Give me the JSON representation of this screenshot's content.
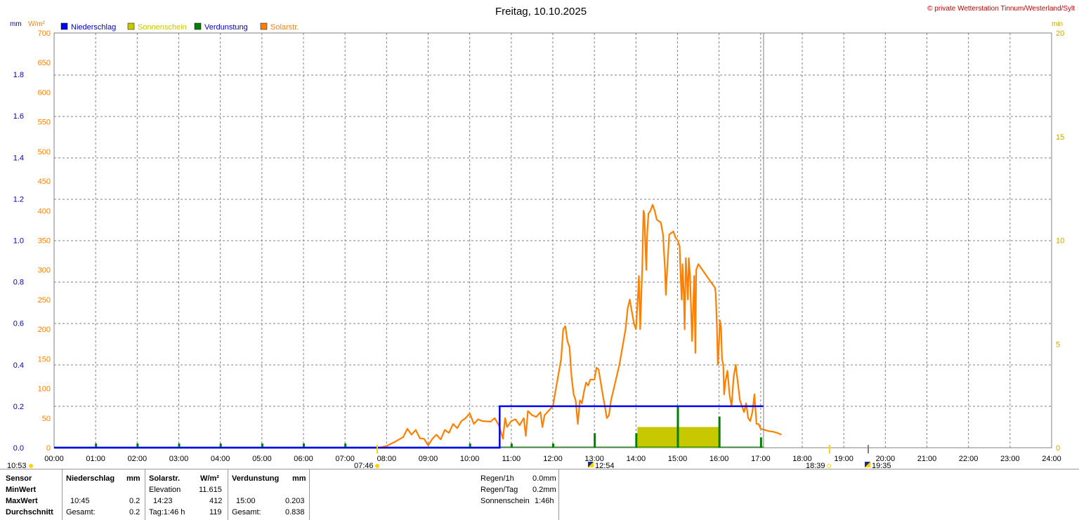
{
  "title": "Freitag, 10.10.2025",
  "copyright": "© private Wetterstation Tinnum/Westerland/Sylt",
  "units": {
    "mm": "mm",
    "wm2": "W/m²",
    "min": "min"
  },
  "legend": [
    {
      "label": "Niederschlag",
      "color": "#0000ff",
      "text_color": "#0000c0"
    },
    {
      "label": "Sonnenschein",
      "color": "#c8c800",
      "text_color": "#c8c800"
    },
    {
      "label": "Verdunstung",
      "color": "#008000",
      "text_color": "#0000c0"
    },
    {
      "label": "Solarstr.",
      "color": "#ff8000",
      "text_color": "#ff8000"
    }
  ],
  "sun_markers": {
    "moonset": "10:53",
    "sunrise": "07:46",
    "moon_mid": "12:54",
    "sunset": "18:39",
    "moonrise": "19:35"
  },
  "chart_data": {
    "type": "line",
    "title": "Freitag, 10.10.2025",
    "x_ticks": [
      "00:00",
      "01:00",
      "02:00",
      "03:00",
      "04:00",
      "05:00",
      "06:00",
      "07:00",
      "08:00",
      "09:00",
      "10:00",
      "11:00",
      "12:00",
      "13:00",
      "14:00",
      "15:00",
      "16:00",
      "17:00",
      "18:00",
      "19:00",
      "20:00",
      "21:00",
      "22:00",
      "23:00",
      "24:00"
    ],
    "xlim_hours": [
      0,
      24
    ],
    "current_time_hours": 17.07,
    "grid": true,
    "legend_position": "top-left",
    "axes": {
      "left_mm": {
        "ticks": [
          "0.0",
          "0.2",
          "0.4",
          "0.6",
          "0.8",
          "1.0",
          "1.2",
          "1.4",
          "1.6",
          "1.8"
        ],
        "range": [
          0,
          2.0
        ]
      },
      "left_wm2": {
        "ticks": [
          "0",
          "50",
          "100",
          "150",
          "200",
          "250",
          "300",
          "350",
          "400",
          "450",
          "500",
          "550",
          "600",
          "650",
          "700"
        ],
        "range": [
          0,
          700
        ]
      },
      "right_min": {
        "ticks": [
          "0",
          "5",
          "10",
          "15",
          "20"
        ],
        "range": [
          0,
          20
        ]
      }
    },
    "series": [
      {
        "name": "Niederschlag",
        "axis": "left_mm",
        "color": "#0000ff",
        "points": [
          [
            0,
            0
          ],
          [
            10.72,
            0
          ],
          [
            10.72,
            0.2
          ],
          [
            17.07,
            0.2
          ]
        ]
      },
      {
        "name": "Solarstr.",
        "axis": "left_wm2",
        "color": "#ff8000",
        "points": [
          [
            7.8,
            0
          ],
          [
            8.0,
            3
          ],
          [
            8.2,
            10
          ],
          [
            8.4,
            18
          ],
          [
            8.5,
            32
          ],
          [
            8.6,
            22
          ],
          [
            8.7,
            30
          ],
          [
            8.8,
            16
          ],
          [
            8.9,
            15
          ],
          [
            9.0,
            4
          ],
          [
            9.1,
            15
          ],
          [
            9.2,
            22
          ],
          [
            9.3,
            14
          ],
          [
            9.4,
            30
          ],
          [
            9.5,
            25
          ],
          [
            9.6,
            40
          ],
          [
            9.7,
            33
          ],
          [
            9.8,
            45
          ],
          [
            9.9,
            50
          ],
          [
            10.0,
            58
          ],
          [
            10.1,
            40
          ],
          [
            10.2,
            48
          ],
          [
            10.3,
            45
          ],
          [
            10.5,
            44
          ],
          [
            10.6,
            50
          ],
          [
            10.7,
            38
          ],
          [
            10.8,
            15
          ],
          [
            10.85,
            50
          ],
          [
            10.9,
            35
          ],
          [
            11.0,
            45
          ],
          [
            11.1,
            48
          ],
          [
            11.2,
            38
          ],
          [
            11.3,
            50
          ],
          [
            11.35,
            20
          ],
          [
            11.4,
            62
          ],
          [
            11.5,
            55
          ],
          [
            11.6,
            52
          ],
          [
            11.7,
            60
          ],
          [
            11.75,
            35
          ],
          [
            11.8,
            55
          ],
          [
            12.0,
            70
          ],
          [
            12.1,
            110
          ],
          [
            12.15,
            130
          ],
          [
            12.2,
            150
          ],
          [
            12.25,
            200
          ],
          [
            12.3,
            205
          ],
          [
            12.35,
            180
          ],
          [
            12.4,
            170
          ],
          [
            12.45,
            120
          ],
          [
            12.5,
            90
          ],
          [
            12.55,
            80
          ],
          [
            12.6,
            40
          ],
          [
            12.65,
            80
          ],
          [
            12.7,
            75
          ],
          [
            12.75,
            95
          ],
          [
            12.8,
            110
          ],
          [
            12.85,
            105
          ],
          [
            12.9,
            115
          ],
          [
            13.0,
            115
          ],
          [
            13.05,
            135
          ],
          [
            13.1,
            132
          ],
          [
            13.2,
            90
          ],
          [
            13.25,
            70
          ],
          [
            13.3,
            50
          ],
          [
            13.35,
            55
          ],
          [
            13.4,
            80
          ],
          [
            13.5,
            110
          ],
          [
            13.6,
            140
          ],
          [
            13.7,
            180
          ],
          [
            13.75,
            200
          ],
          [
            13.8,
            235
          ],
          [
            13.85,
            250
          ],
          [
            13.9,
            230
          ],
          [
            13.95,
            210
          ],
          [
            14.0,
            200
          ],
          [
            14.05,
            260
          ],
          [
            14.07,
            290
          ],
          [
            14.1,
            200
          ],
          [
            14.15,
            300
          ],
          [
            14.18,
            400
          ],
          [
            14.2,
            395
          ],
          [
            14.22,
            350
          ],
          [
            14.25,
            300
          ],
          [
            14.27,
            360
          ],
          [
            14.3,
            395
          ],
          [
            14.35,
            400
          ],
          [
            14.4,
            410
          ],
          [
            14.45,
            400
          ],
          [
            14.5,
            385
          ],
          [
            14.6,
            380
          ],
          [
            14.65,
            360
          ],
          [
            14.7,
            300
          ],
          [
            14.72,
            258
          ],
          [
            14.75,
            300
          ],
          [
            14.8,
            360
          ],
          [
            14.9,
            365
          ],
          [
            14.95,
            355
          ],
          [
            15.0,
            350
          ],
          [
            15.05,
            340
          ],
          [
            15.07,
            300
          ],
          [
            15.1,
            250
          ],
          [
            15.12,
            310
          ],
          [
            15.15,
            260
          ],
          [
            15.17,
            200
          ],
          [
            15.2,
            320
          ],
          [
            15.25,
            250
          ],
          [
            15.27,
            320
          ],
          [
            15.3,
            290
          ],
          [
            15.35,
            180
          ],
          [
            15.4,
            290
          ],
          [
            15.43,
            160
          ],
          [
            15.45,
            300
          ],
          [
            15.5,
            310
          ],
          [
            15.6,
            300
          ],
          [
            15.7,
            290
          ],
          [
            15.8,
            280
          ],
          [
            15.9,
            270
          ],
          [
            15.92,
            260
          ],
          [
            15.95,
            200
          ],
          [
            15.97,
            140
          ],
          [
            16.0,
            180
          ],
          [
            16.02,
            215
          ],
          [
            16.05,
            200
          ],
          [
            16.07,
            150
          ],
          [
            16.1,
            140
          ],
          [
            16.12,
            90
          ],
          [
            16.15,
            110
          ],
          [
            16.2,
            130
          ],
          [
            16.25,
            90
          ],
          [
            16.3,
            70
          ],
          [
            16.35,
            120
          ],
          [
            16.4,
            140
          ],
          [
            16.45,
            110
          ],
          [
            16.5,
            80
          ],
          [
            16.55,
            70
          ],
          [
            16.6,
            60
          ],
          [
            16.65,
            75
          ],
          [
            16.7,
            50
          ],
          [
            16.75,
            45
          ],
          [
            16.8,
            60
          ],
          [
            16.85,
            90
          ],
          [
            16.9,
            40
          ],
          [
            16.95,
            40
          ],
          [
            17.0,
            32
          ],
          [
            17.1,
            30
          ],
          [
            17.2,
            28
          ],
          [
            17.3,
            27
          ],
          [
            17.4,
            25
          ],
          [
            17.5,
            22
          ]
        ]
      },
      {
        "name": "Verdunstung",
        "axis": "left_mm",
        "color": "#008000",
        "points": [
          [
            1,
            0.01
          ],
          [
            2,
            0.01
          ],
          [
            3,
            0.01
          ],
          [
            4,
            0.01
          ],
          [
            5,
            0.01
          ],
          [
            6,
            0.01
          ],
          [
            7,
            0.01
          ],
          [
            10,
            0.01
          ],
          [
            11,
            0.01
          ],
          [
            12,
            0.01
          ],
          [
            13,
            0.07
          ],
          [
            14,
            0.07
          ],
          [
            15,
            0.2
          ],
          [
            16,
            0.15
          ],
          [
            17,
            0.05
          ]
        ]
      },
      {
        "name": "Sonnenschein",
        "axis": "right_min",
        "color": "#c8c800",
        "bars": [
          [
            14.0,
            15.0,
            1.0
          ],
          [
            15.0,
            16.0,
            1.0
          ]
        ]
      }
    ]
  },
  "stats": {
    "headers": {
      "sensor": "Sensor",
      "niederschlag": "Niederschlag",
      "mm1": "mm",
      "solar": "Solarstr.",
      "wm2": "W/m²",
      "verdunstung": "Verdunstung",
      "mm2": "mm"
    },
    "min_label": "MinWert",
    "max_label": "MaxWert",
    "avg_label": "Durchschnitt",
    "elevation_label": "Elevation",
    "elevation_value": "11.615",
    "rain_max_time": "10:45",
    "rain_max_value": "0.2",
    "rain_total_label": "Gesamt:",
    "rain_total_value": "0.2",
    "solar_max_time": "14:23",
    "solar_max_value": "412",
    "solar_day_label": "Tag:1:46 h",
    "solar_avg_value": "119",
    "evap_max_time": "15:00",
    "evap_max_value": "0.203",
    "evap_total_label": "Gesamt:",
    "evap_total_value": "0.838",
    "rain_1h_label": "Regen/1h",
    "rain_1h_value": "0.0mm",
    "rain_day_label": "Regen/Tag",
    "rain_day_value": "0.2mm",
    "sunshine_label": "Sonnenschein",
    "sunshine_value": "1:46h"
  }
}
